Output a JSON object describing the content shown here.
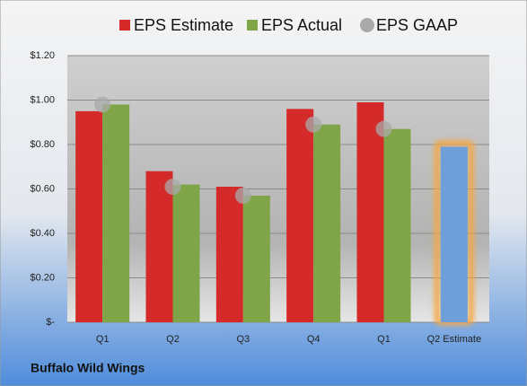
{
  "chart_data": {
    "type": "bar",
    "categories": [
      "Q1",
      "Q2",
      "Q3",
      "Q4",
      "Q1",
      "Q2 Estimate"
    ],
    "series": [
      {
        "name": "EPS Estimate",
        "color": "#d42a2a",
        "values": [
          0.95,
          0.68,
          0.61,
          0.96,
          0.99,
          0.79
        ],
        "highlight": {
          "index": 5,
          "color": "#6f9fd8",
          "glow": "#f5a742"
        }
      },
      {
        "name": "EPS Actual",
        "color": "#7fa548",
        "values": [
          0.98,
          0.62,
          0.57,
          0.89,
          0.87,
          null
        ]
      },
      {
        "name": "EPS GAAP",
        "color": "#a9a9a9",
        "marker": "circle",
        "values": [
          0.98,
          0.61,
          0.57,
          0.89,
          0.87,
          null
        ]
      }
    ],
    "ylim": [
      0,
      1.2
    ],
    "yticks": [
      {
        "value": 0,
        "label": "$-"
      },
      {
        "value": 0.2,
        "label": "$0.20"
      },
      {
        "value": 0.4,
        "label": "$0.40"
      },
      {
        "value": 0.6,
        "label": "$0.60"
      },
      {
        "value": 0.8,
        "label": "$0.80"
      },
      {
        "value": 1.0,
        "label": "$1.00"
      },
      {
        "value": 1.2,
        "label": "$1.20"
      }
    ],
    "grid": true,
    "legend": "top",
    "footer": "Buffalo Wild Wings"
  }
}
